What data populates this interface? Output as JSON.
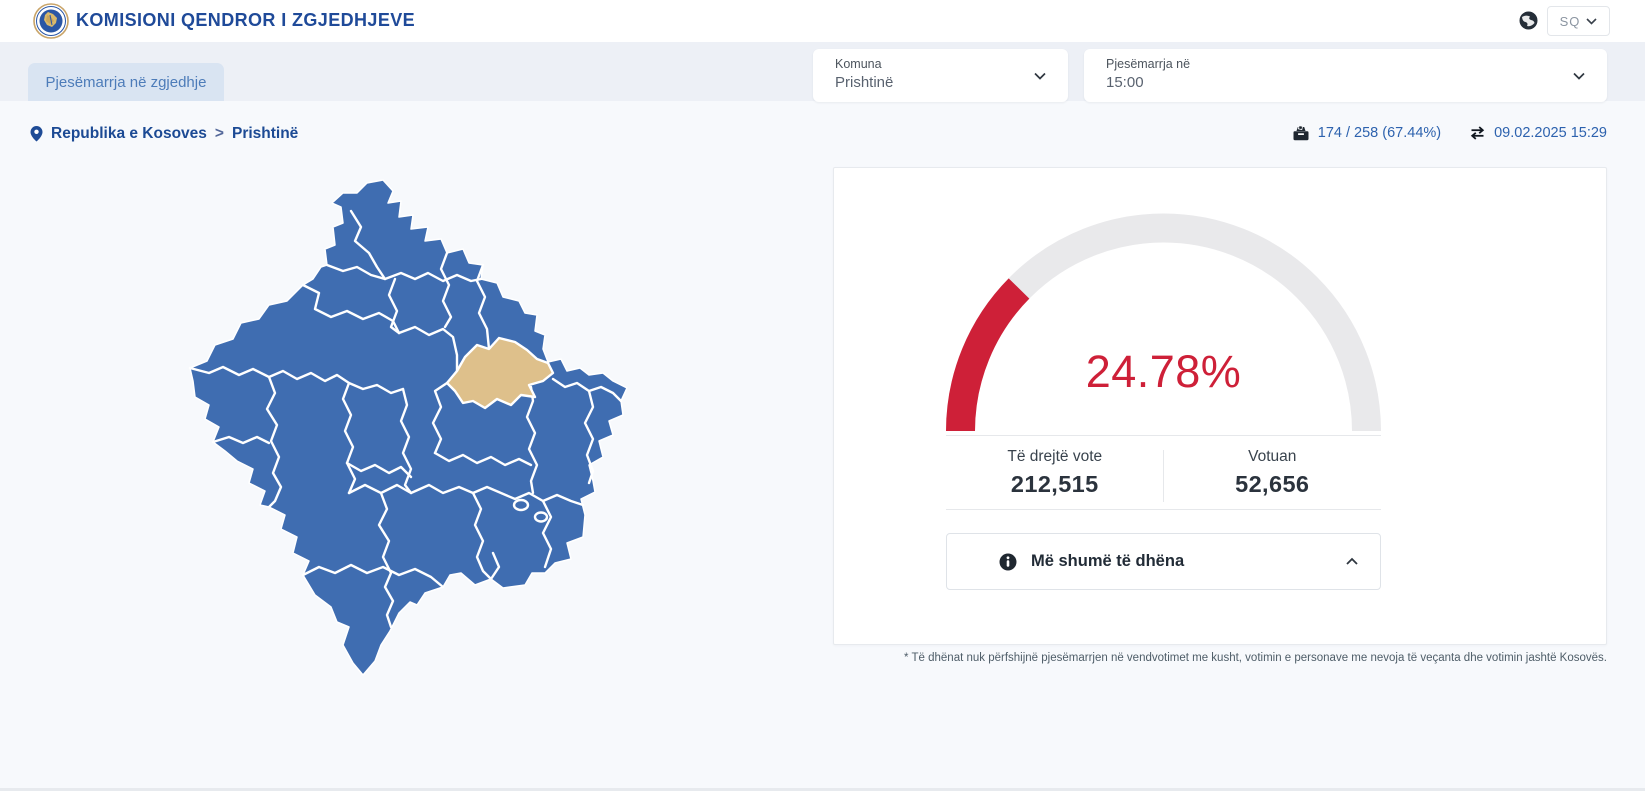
{
  "header": {
    "title": "KOMISIONI QENDROR I ZGJEDHJEVE",
    "language": "SQ"
  },
  "tab": {
    "label": "Pjesëmarrja në zgjedhje"
  },
  "filters": {
    "municipality": {
      "label": "Komuna",
      "value": "Prishtinë"
    },
    "participation": {
      "label": "Pjesëmarrja në",
      "value": "15:00"
    }
  },
  "breadcrumb": {
    "country": "Republika e Kosoves",
    "separator": ">",
    "municipality": "Prishtinë"
  },
  "status": {
    "reporting": "174 / 258 (67.44%)",
    "updated": "09.02.2025 15:29"
  },
  "chart_data": {
    "type": "gauge",
    "value_percent": 24.78,
    "value_label": "24.78%",
    "range": [
      0,
      100
    ],
    "value_color": "#ce2038",
    "track_color": "#e9e9eb",
    "stats": {
      "eligible_label": "Të drejtë vote",
      "eligible_value": "212,515",
      "voted_label": "Votuan",
      "voted_value": "52,656"
    }
  },
  "more_info": {
    "label": "Më shumë të dhëna"
  },
  "footnote": "* Të dhënat nuk përfshijnë pjesëmarrjen në vendvotimet me kusht, votimin e personave me nevoja të veçanta dhe votimin jashtë Kosovës.",
  "map": {
    "selected_municipality": "Prishtinë",
    "fill": "#3f6db1",
    "highlight": "#dec08b",
    "border_color": "#ffffff"
  }
}
